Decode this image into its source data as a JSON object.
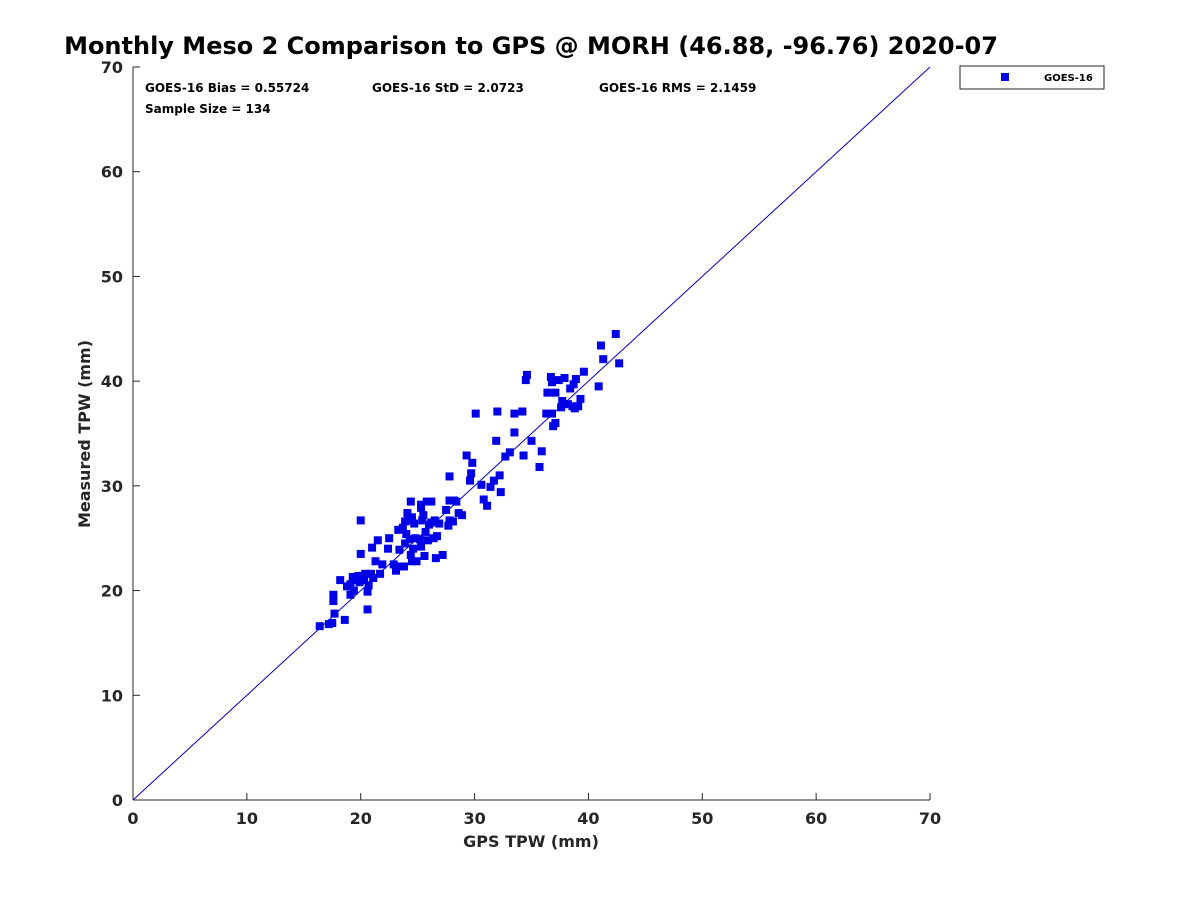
{
  "chart_data": {
    "type": "scatter",
    "title": "Monthly Meso 2 Comparison to GPS @ MORH (46.88, -96.76) 2020-07",
    "xlabel": "GPS TPW (mm)",
    "ylabel": "Measured TPW (mm)",
    "xlim": [
      0,
      70
    ],
    "ylim": [
      0,
      70
    ],
    "xticks": [
      "0",
      "10",
      "20",
      "30",
      "40",
      "50",
      "60",
      "70"
    ],
    "yticks": [
      "0",
      "10",
      "20",
      "30",
      "40",
      "50",
      "60",
      "70"
    ],
    "grid": false,
    "legend_position": "outside-top-right",
    "stats": {
      "bias": "GOES-16 Bias = 0.55724",
      "std": "GOES-16 StD = 2.0723",
      "rms": "GOES-16 RMS = 2.1459",
      "sample": "Sample Size = 134"
    },
    "reference_line": {
      "x": [
        0,
        70
      ],
      "y": [
        0,
        70
      ],
      "color": "#0000cc"
    },
    "series": [
      {
        "name": "GOES-16",
        "color": "#0000e6",
        "marker": "square",
        "points": [
          [
            16.4,
            16.6
          ],
          [
            17.2,
            16.8
          ],
          [
            17.5,
            16.9
          ],
          [
            17.6,
            19.0
          ],
          [
            17.6,
            19.6
          ],
          [
            17.7,
            17.8
          ],
          [
            18.2,
            21.0
          ],
          [
            18.6,
            17.2
          ],
          [
            18.8,
            20.4
          ],
          [
            19.1,
            19.6
          ],
          [
            19.1,
            20.6
          ],
          [
            19.3,
            21.3
          ],
          [
            19.4,
            20.0
          ],
          [
            19.6,
            21.0
          ],
          [
            19.8,
            21.4
          ],
          [
            19.9,
            20.8
          ],
          [
            20.0,
            26.7
          ],
          [
            20.0,
            23.5
          ],
          [
            20.1,
            21.4
          ],
          [
            20.3,
            21.0
          ],
          [
            20.4,
            21.6
          ],
          [
            20.6,
            18.2
          ],
          [
            20.6,
            19.9
          ],
          [
            20.7,
            20.5
          ],
          [
            20.9,
            21.6
          ],
          [
            21.0,
            24.1
          ],
          [
            21.1,
            21.2
          ],
          [
            21.3,
            22.8
          ],
          [
            21.5,
            24.8
          ],
          [
            21.7,
            21.6
          ],
          [
            21.9,
            22.5
          ],
          [
            22.4,
            24.0
          ],
          [
            22.9,
            22.5
          ],
          [
            23.1,
            21.9
          ],
          [
            23.3,
            22.3
          ],
          [
            23.3,
            25.8
          ],
          [
            23.4,
            23.9
          ],
          [
            23.7,
            26.0
          ],
          [
            23.8,
            22.3
          ],
          [
            23.9,
            24.5
          ],
          [
            23.9,
            26.6
          ],
          [
            24.0,
            25.4
          ],
          [
            24.1,
            27.4
          ],
          [
            24.2,
            26.7
          ],
          [
            24.3,
            24.9
          ],
          [
            24.4,
            23.4
          ],
          [
            24.4,
            28.5
          ],
          [
            24.5,
            27.0
          ],
          [
            24.5,
            22.8
          ],
          [
            24.6,
            24.0
          ],
          [
            24.7,
            26.4
          ],
          [
            24.8,
            25.0
          ],
          [
            24.9,
            22.8
          ],
          [
            25.2,
            24.9
          ],
          [
            25.3,
            24.2
          ],
          [
            25.3,
            28.2
          ],
          [
            25.3,
            27.9
          ],
          [
            25.4,
            26.7
          ],
          [
            25.5,
            27.2
          ],
          [
            25.6,
            23.3
          ],
          [
            25.7,
            25.6
          ],
          [
            25.8,
            28.5
          ],
          [
            25.9,
            24.8
          ],
          [
            26.0,
            26.3
          ],
          [
            26.2,
            28.5
          ],
          [
            26.4,
            25.0
          ],
          [
            26.5,
            26.7
          ],
          [
            26.6,
            23.1
          ],
          [
            26.7,
            25.2
          ],
          [
            26.9,
            26.4
          ],
          [
            27.2,
            23.4
          ],
          [
            27.5,
            27.7
          ],
          [
            27.7,
            26.2
          ],
          [
            27.8,
            26.7
          ],
          [
            27.8,
            28.6
          ],
          [
            27.8,
            30.9
          ],
          [
            28.1,
            26.6
          ],
          [
            28.2,
            28.6
          ],
          [
            28.4,
            28.5
          ],
          [
            28.6,
            27.4
          ],
          [
            28.9,
            27.2
          ],
          [
            29.3,
            32.9
          ],
          [
            29.6,
            30.5
          ],
          [
            29.7,
            31.2
          ],
          [
            29.8,
            32.2
          ],
          [
            30.1,
            36.9
          ],
          [
            30.6,
            30.1
          ],
          [
            30.8,
            28.7
          ],
          [
            31.1,
            28.1
          ],
          [
            31.4,
            29.9
          ],
          [
            31.7,
            30.5
          ],
          [
            31.9,
            34.3
          ],
          [
            32.0,
            37.1
          ],
          [
            32.2,
            31.0
          ],
          [
            32.3,
            29.4
          ],
          [
            32.7,
            32.8
          ],
          [
            33.1,
            33.2
          ],
          [
            33.5,
            35.1
          ],
          [
            33.5,
            36.9
          ],
          [
            34.2,
            37.1
          ],
          [
            34.3,
            32.9
          ],
          [
            34.5,
            40.1
          ],
          [
            34.6,
            40.6
          ],
          [
            35.0,
            34.3
          ],
          [
            35.7,
            31.8
          ],
          [
            35.9,
            33.3
          ],
          [
            36.3,
            36.9
          ],
          [
            36.4,
            38.9
          ],
          [
            36.7,
            40.4
          ],
          [
            36.8,
            39.9
          ],
          [
            36.8,
            36.9
          ],
          [
            36.9,
            35.7
          ],
          [
            37.1,
            36.0
          ],
          [
            37.1,
            38.9
          ],
          [
            37.4,
            40.1
          ],
          [
            37.6,
            37.5
          ],
          [
            37.7,
            38.1
          ],
          [
            37.9,
            40.3
          ],
          [
            38.2,
            37.8
          ],
          [
            38.4,
            39.3
          ],
          [
            38.6,
            37.6
          ],
          [
            38.7,
            39.7
          ],
          [
            38.8,
            37.4
          ],
          [
            38.9,
            40.2
          ],
          [
            39.1,
            37.6
          ],
          [
            39.3,
            38.3
          ],
          [
            39.6,
            40.9
          ],
          [
            40.9,
            39.5
          ],
          [
            41.1,
            43.4
          ],
          [
            41.3,
            42.1
          ],
          [
            42.4,
            44.5
          ],
          [
            42.7,
            41.7
          ],
          [
            22.5,
            25.0
          ],
          [
            26.2,
            26.5
          ]
        ]
      }
    ]
  }
}
